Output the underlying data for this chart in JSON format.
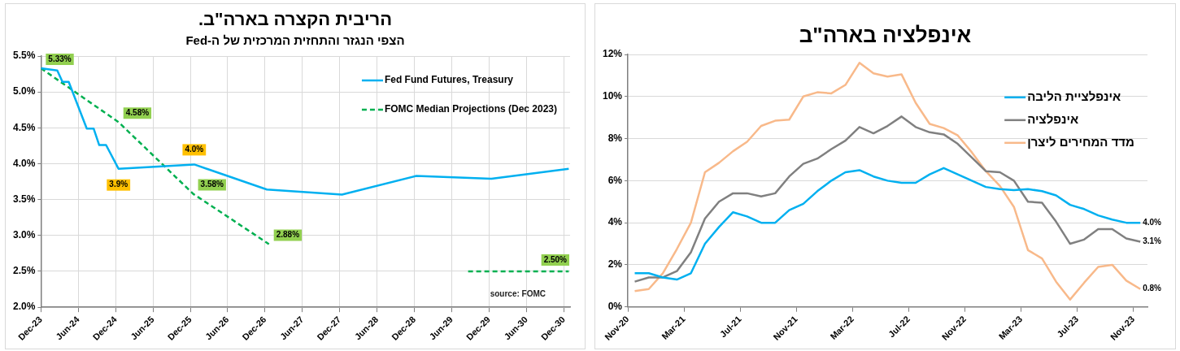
{
  "chart_data": [
    {
      "type": "line",
      "title": "הריבית הקצרה בארה\"ב.",
      "subtitle": "הצפי הנגזר והתחזית המרכזית של ה-Fed",
      "xlim": [
        "2023-12",
        "2031-01"
      ],
      "xticks": [
        {
          "value": "2023-12",
          "label": "Dec-23"
        },
        {
          "value": "2024-06",
          "label": "Jun-24"
        },
        {
          "value": "2024-12",
          "label": "Dec-24"
        },
        {
          "value": "2025-06",
          "label": "Jun-25"
        },
        {
          "value": "2025-12",
          "label": "Dec-25"
        },
        {
          "value": "2026-06",
          "label": "Jun-26"
        },
        {
          "value": "2026-12",
          "label": "Dec-26"
        },
        {
          "value": "2027-06",
          "label": "Jun-27"
        },
        {
          "value": "2027-12",
          "label": "Dec-27"
        },
        {
          "value": "2028-06",
          "label": "Jun-28"
        },
        {
          "value": "2028-12",
          "label": "Dec-28"
        },
        {
          "value": "2029-06",
          "label": "Jun-29"
        },
        {
          "value": "2029-12",
          "label": "Dec-29"
        },
        {
          "value": "2030-06",
          "label": "Jun-30"
        },
        {
          "value": "2030-12",
          "label": "Dec-30"
        }
      ],
      "ylim": [
        2.0,
        5.5
      ],
      "yticks": [
        {
          "value": 2.0,
          "label": "2.0%"
        },
        {
          "value": 2.5,
          "label": "2.5%"
        },
        {
          "value": 3.0,
          "label": "3.0%"
        },
        {
          "value": 3.5,
          "label": "3.5%"
        },
        {
          "value": 4.0,
          "label": "4.0%"
        },
        {
          "value": 4.5,
          "label": "4.5%"
        },
        {
          "value": 5.0,
          "label": "5.0%"
        },
        {
          "value": 5.5,
          "label": "5.5%"
        }
      ],
      "grid": true,
      "legend": "top right",
      "marker": "none",
      "annotations": [
        "source: FOMC"
      ],
      "series": [
        {
          "name": "Fed Fund Futures, Treasury",
          "color": "#00b0f0",
          "line_style": "solid",
          "x": [
            "2023-12",
            "2024-02-20",
            "2024-03-15",
            "2024-04-15",
            "2024-07-12",
            "2024-08-15",
            "2024-09-12",
            "2024-10-15",
            "2024-12-15",
            "2025-12-20",
            "2026-12-10",
            "2027-12-12",
            "2028-12-10",
            "2029-12-12",
            "2030-12-25"
          ],
          "values": [
            5.33,
            5.3,
            5.14,
            5.14,
            4.49,
            4.49,
            4.26,
            4.26,
            3.93,
            3.99,
            3.64,
            3.57,
            3.83,
            3.79,
            3.93
          ],
          "value_labels": [
            null,
            null,
            null,
            null,
            null,
            null,
            null,
            null,
            "3.9%",
            "4.0%",
            null,
            null,
            null,
            null,
            null
          ]
        },
        {
          "name": "FOMC Median Projections (Dec 2023)",
          "color": "#00b050",
          "line_style": "dashed",
          "x": [
            "2023-12",
            "2024-12-15",
            "2025-12-15",
            "2026-12-20",
            "2028-06",
            "2029-08-20",
            "2030-12-25"
          ],
          "values": [
            5.33,
            4.58,
            3.58,
            2.88,
            null,
            2.5,
            2.5
          ],
          "value_labels": [
            "5.33%",
            "4.58%",
            "3.58%",
            "2.88%",
            null,
            null,
            "2.50%"
          ]
        }
      ]
    },
    {
      "type": "line",
      "title": "אינפלציה בארה\"ב",
      "xlim": [
        "2020-11",
        "2023-12"
      ],
      "xticks": [
        {
          "value": "2020-11",
          "label": "Nov-20"
        },
        {
          "value": "2021-03",
          "label": "Mar-21"
        },
        {
          "value": "2021-07",
          "label": "Jul-21"
        },
        {
          "value": "2021-11",
          "label": "Nov-21"
        },
        {
          "value": "2022-03",
          "label": "Mar-22"
        },
        {
          "value": "2022-07",
          "label": "Jul-22"
        },
        {
          "value": "2022-11",
          "label": "Nov-22"
        },
        {
          "value": "2023-03",
          "label": "Mar-23"
        },
        {
          "value": "2023-07",
          "label": "Jul-23"
        },
        {
          "value": "2023-11",
          "label": "Nov-23"
        }
      ],
      "ylim": [
        0,
        12
      ],
      "yticks": [
        {
          "value": 0,
          "label": "0%"
        },
        {
          "value": 2,
          "label": "2%"
        },
        {
          "value": 4,
          "label": "4%"
        },
        {
          "value": 6,
          "label": "6%"
        },
        {
          "value": 8,
          "label": "8%"
        },
        {
          "value": 10,
          "label": "10%"
        },
        {
          "value": 12,
          "label": "12%"
        }
      ],
      "grid": "y",
      "legend": "right",
      "marker": "none",
      "x": [
        "2020-11-16",
        "2020-12-16",
        "2021-01-16",
        "2021-02-16",
        "2021-03-16",
        "2021-04-16",
        "2021-05-16",
        "2021-06-16",
        "2021-07-16",
        "2021-08-16",
        "2021-09-16",
        "2021-10-16",
        "2021-11-16",
        "2021-12-16",
        "2022-01-16",
        "2022-02-16",
        "2022-03-16",
        "2022-04-16",
        "2022-05-16",
        "2022-06-16",
        "2022-07-16",
        "2022-08-16",
        "2022-09-16",
        "2022-10-16",
        "2022-11-16",
        "2022-12-16",
        "2023-01-16",
        "2023-02-16",
        "2023-03-16",
        "2023-04-16",
        "2023-05-16",
        "2023-06-16",
        "2023-07-16",
        "2023-08-16",
        "2023-09-16",
        "2023-10-16",
        "2023-11-16"
      ],
      "series": [
        {
          "name": "אינפלציית הליבה",
          "color": "#00b0f0",
          "values": [
            1.6,
            1.6,
            1.4,
            1.3,
            1.6,
            3.0,
            3.8,
            4.5,
            4.3,
            4.0,
            4.0,
            4.6,
            4.9,
            5.5,
            6.0,
            6.4,
            6.5,
            6.2,
            6.0,
            5.9,
            5.9,
            6.3,
            6.6,
            6.3,
            6.0,
            5.7,
            5.6,
            5.55,
            5.6,
            5.5,
            5.3,
            4.85,
            4.65,
            4.35,
            4.15,
            4.0,
            4.0
          ],
          "value_labels": [
            null,
            null,
            null,
            null,
            null,
            null,
            null,
            null,
            null,
            null,
            null,
            null,
            null,
            null,
            null,
            null,
            null,
            null,
            null,
            null,
            null,
            null,
            null,
            null,
            null,
            null,
            null,
            null,
            null,
            null,
            null,
            null,
            null,
            null,
            null,
            null,
            "4.0%"
          ]
        },
        {
          "name": "אינפלציה",
          "color": "#808080",
          "values": [
            1.2,
            1.4,
            1.4,
            1.7,
            2.6,
            4.2,
            5.0,
            5.4,
            5.4,
            5.25,
            5.4,
            6.2,
            6.8,
            7.05,
            7.5,
            7.9,
            8.55,
            8.25,
            8.6,
            9.05,
            8.55,
            8.3,
            8.2,
            7.75,
            7.1,
            6.45,
            6.4,
            6.0,
            5.0,
            4.95,
            4.05,
            3.0,
            3.2,
            3.7,
            3.7,
            3.25,
            3.1
          ],
          "value_labels": [
            null,
            null,
            null,
            null,
            null,
            null,
            null,
            null,
            null,
            null,
            null,
            null,
            null,
            null,
            null,
            null,
            null,
            null,
            null,
            null,
            null,
            null,
            null,
            null,
            null,
            null,
            null,
            null,
            null,
            null,
            null,
            null,
            null,
            null,
            null,
            null,
            "3.1%"
          ]
        },
        {
          "name": "מדד המחירים ליצרן",
          "color": "#f8b98a",
          "values": [
            0.75,
            0.85,
            1.6,
            2.75,
            4.0,
            6.4,
            6.85,
            7.4,
            7.85,
            8.6,
            8.85,
            8.9,
            10.0,
            10.2,
            10.15,
            10.55,
            11.6,
            11.1,
            10.95,
            11.05,
            9.7,
            8.7,
            8.5,
            8.15,
            7.35,
            6.45,
            5.75,
            4.75,
            2.7,
            2.3,
            1.2,
            0.35,
            1.15,
            1.9,
            2.0,
            1.25,
            0.85
          ],
          "value_labels": [
            null,
            null,
            null,
            null,
            null,
            null,
            null,
            null,
            null,
            null,
            null,
            null,
            null,
            null,
            null,
            null,
            null,
            null,
            null,
            null,
            null,
            null,
            null,
            null,
            null,
            null,
            null,
            null,
            null,
            null,
            null,
            null,
            null,
            null,
            null,
            null,
            "0.8%"
          ]
        }
      ]
    }
  ]
}
